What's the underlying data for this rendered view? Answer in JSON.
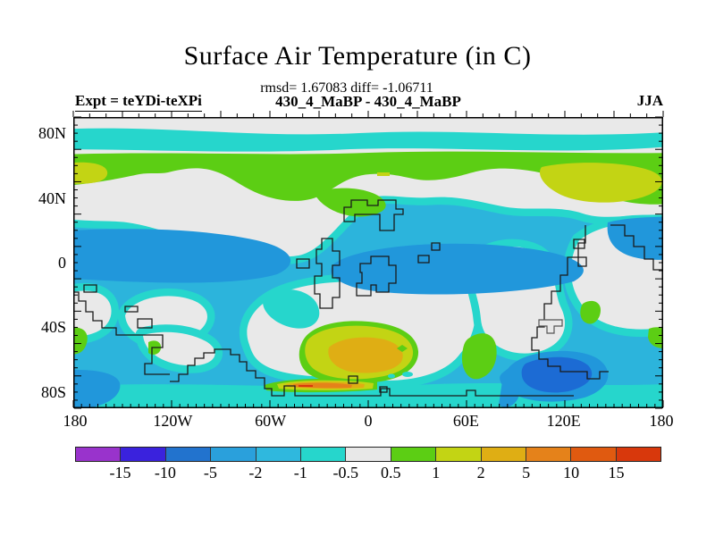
{
  "title": "Surface Air Temperature (in C)",
  "stats_line": "rmsd= 1.67083 diff= -1.06711",
  "comparison_line": "430_4_MaBP - 430_4_MaBP",
  "expt_label": "Expt = teYDi-teXPi",
  "season_label": "JJA",
  "axes": {
    "lon_ticks": [
      "180",
      "120W",
      "60W",
      "0",
      "60E",
      "120E",
      "180"
    ],
    "lat_ticks": [
      {
        "label": "80N",
        "deg": 80
      },
      {
        "label": "40N",
        "deg": 40
      },
      {
        "label": "0",
        "deg": 0
      },
      {
        "label": "40S",
        "deg": -40
      },
      {
        "label": "80S",
        "deg": -80
      }
    ]
  },
  "colorbar": {
    "levels": [
      "-15",
      "-10",
      "-5",
      "-2",
      "-1",
      "-0.5",
      "0.5",
      "1",
      "2",
      "5",
      "10",
      "15"
    ],
    "colors": [
      "#9933cc",
      "#3a22dd",
      "#2273ce",
      "#2aa0dc",
      "#2fb8de",
      "#26d6cc",
      "#e8e8e8",
      "#5cce14",
      "#c3d414",
      "#dfae14",
      "#e5821a",
      "#e05a10",
      "#d8380c"
    ]
  },
  "chart_data": {
    "type": "heatmap",
    "subtype": "filled-contour-latlon-map",
    "title": "Surface Air Temperature (in C)",
    "season": "JJA",
    "experiment": "teYDi-teXPi",
    "comparison": "430_4_MaBP - 430_4_MaBP",
    "rmsd": 1.67083,
    "mean_diff": -1.06711,
    "units": "degC difference",
    "x_axis": {
      "ticks": [
        "180",
        "120W",
        "60W",
        "0",
        "60E",
        "120E",
        "180"
      ],
      "range_deg": [
        -180,
        180
      ]
    },
    "y_axis": {
      "ticks": [
        "80N",
        "40N",
        "0",
        "40S",
        "80S"
      ],
      "range_deg": [
        -90,
        90
      ]
    },
    "contour_levels": [
      -15,
      -10,
      -5,
      -2,
      -1,
      -0.5,
      0.5,
      1,
      2,
      5,
      10,
      15
    ],
    "palette": [
      "#9933cc",
      "#3a22dd",
      "#2273ce",
      "#2aa0dc",
      "#2fb8de",
      "#26d6cc",
      "#e8e8e8",
      "#5cce14",
      "#c3d414",
      "#dfae14",
      "#e5821a",
      "#e05a10",
      "#d8380c"
    ],
    "legend_position": "bottom",
    "grid": false,
    "notable_regions": [
      {
        "area": "polar cap 80N-90N",
        "value_range": "-0.5 to 0.5"
      },
      {
        "area": "zonal band near 70N",
        "value_range": "-1 to -0.5"
      },
      {
        "area": "zonal band 45N-60N",
        "value_range": "0.5 to 2, patches 1 to 2 at far west and 90E-150E"
      },
      {
        "area": "30N band",
        "value_range": "-0.5 to 0.5"
      },
      {
        "area": "tropics and equator",
        "value_range": "-5 to -1"
      },
      {
        "area": "subtropical S (30S-50S)",
        "value_range": "-0.5 to 0.5"
      },
      {
        "area": "~55S near 30W-10E",
        "value_range": "2 to 5 maximum warm anomaly"
      },
      {
        "area": "~55S near 50E",
        "value_range": "0.5 to 1"
      },
      {
        "area": "~60S near 100E-140E",
        "value_range": "-10 to -5 cold anomaly"
      },
      {
        "area": "coastal strip ~65S near 60W-30W",
        "value_range": "1 to 10 narrow warm streak"
      }
    ]
  }
}
